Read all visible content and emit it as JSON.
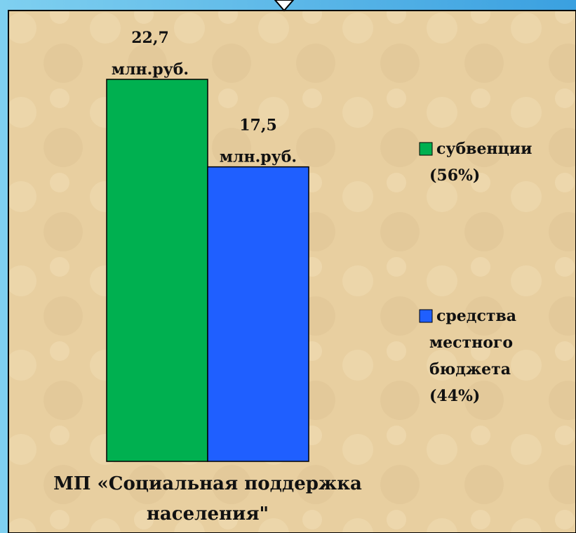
{
  "chart_data": {
    "type": "bar",
    "categories": [
      "МП «Социальная поддержка населения\""
    ],
    "series": [
      {
        "name": "субвенции (56%)",
        "color": "#00b050",
        "values": [
          22.7
        ],
        "value_labels": [
          "22,7 млн.руб."
        ]
      },
      {
        "name": "средства местного бюджета (44%)",
        "color": "#1f5fff",
        "values": [
          17.5
        ],
        "value_labels": [
          "17,5 млн.руб."
        ]
      }
    ],
    "legend": "right"
  }
}
